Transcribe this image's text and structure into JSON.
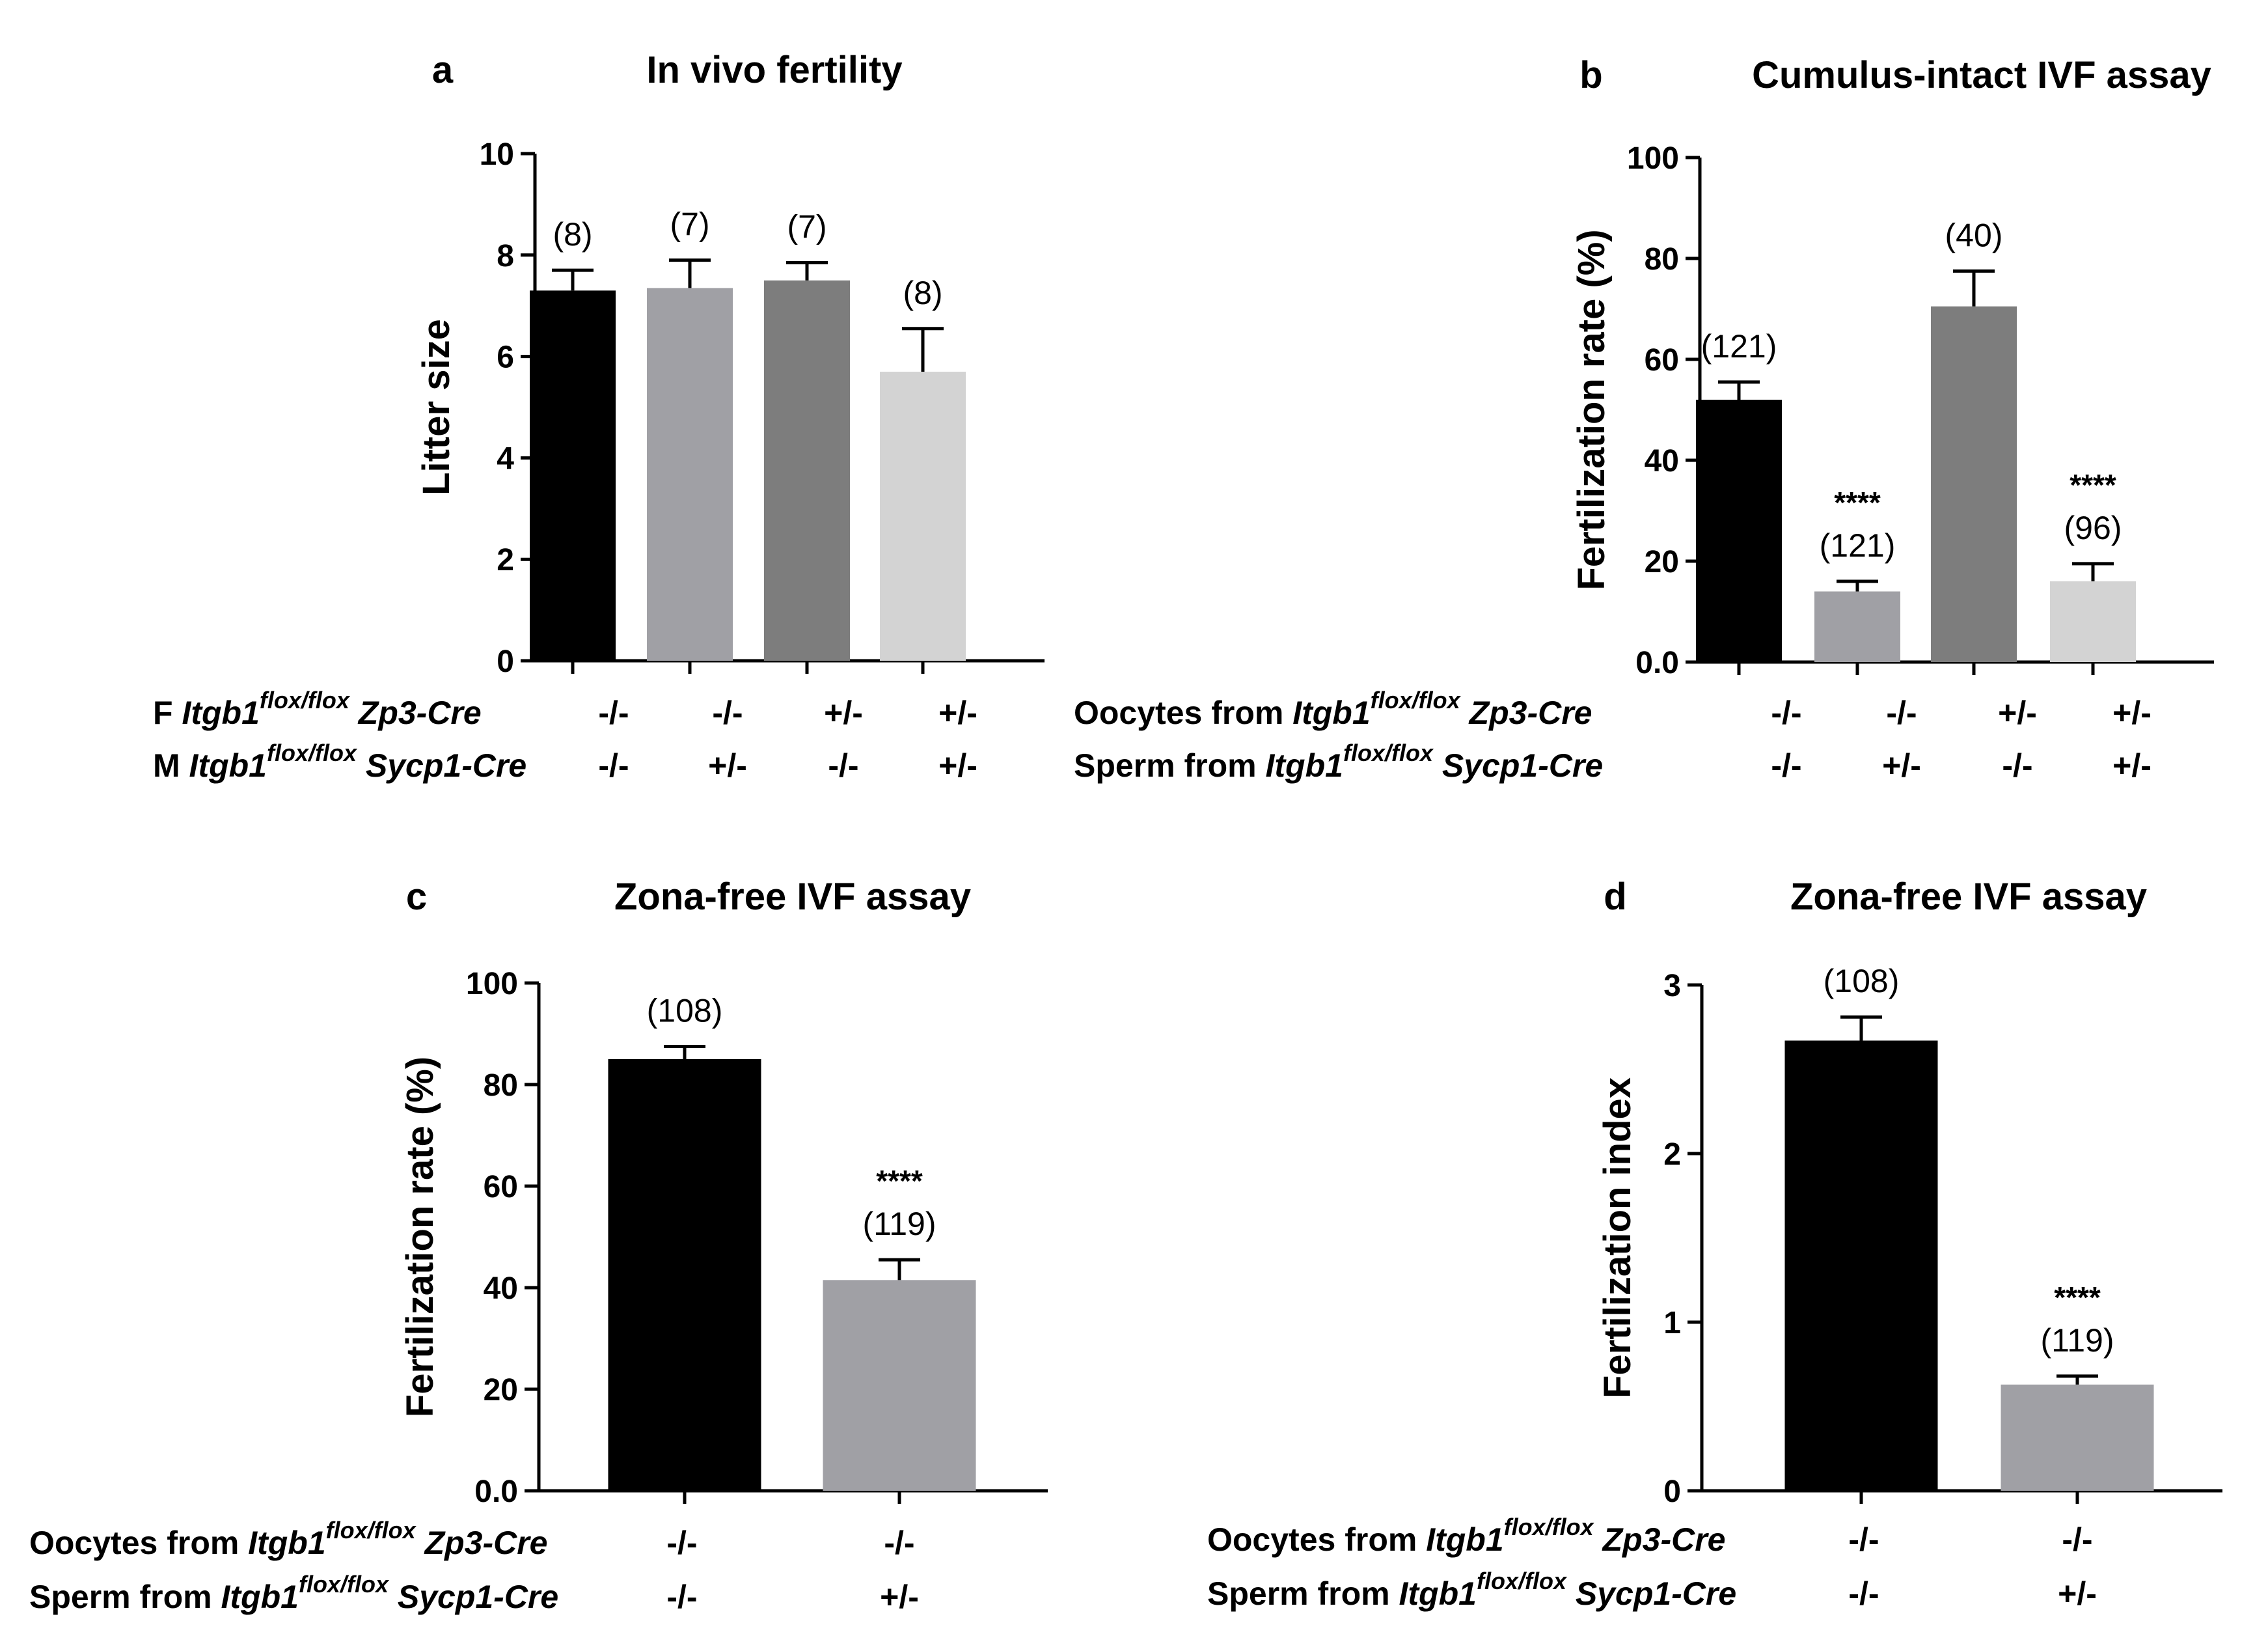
{
  "panels": [
    {
      "id": "a",
      "letter": "a",
      "title": "In vivo fertility",
      "ylabel": "Litter size",
      "ylim": [
        0,
        10
      ],
      "yticks": [
        "0",
        "2",
        "4",
        "6",
        "8",
        "10"
      ],
      "yticks_values": [
        0,
        2,
        4,
        6,
        8,
        10
      ],
      "rows": [
        {
          "prefix": "F ",
          "gene": "Itgb1",
          "sup": "flox/flox",
          "suffix": " Zp3-Cre",
          "values": [
            "-/-",
            "-/-",
            "+/-",
            "+/-"
          ]
        },
        {
          "prefix": "M ",
          "gene": "Itgb1",
          "sup": "flox/flox",
          "suffix": " Sycp1-Cre",
          "values": [
            "-/-",
            "+/-",
            "-/-",
            "+/-"
          ]
        }
      ]
    },
    {
      "id": "b",
      "letter": "b",
      "title": "Cumulus-intact IVF assay",
      "ylabel": "Fertilization rate (%)",
      "ylim": [
        0,
        100
      ],
      "yticks": [
        "0.0",
        "20",
        "40",
        "60",
        "80",
        "100"
      ],
      "yticks_values": [
        0,
        20,
        40,
        60,
        80,
        100
      ],
      "rows": [
        {
          "prefix": "Oocytes from ",
          "gene": "Itgb1",
          "sup": "flox/flox",
          "suffix": " Zp3-Cre",
          "values": [
            "-/-",
            "-/-",
            "+/-",
            "+/-"
          ]
        },
        {
          "prefix": "Sperm from ",
          "gene": "Itgb1",
          "sup": "flox/flox",
          "suffix": " Sycp1-Cre",
          "values": [
            "-/-",
            "+/-",
            "-/-",
            "+/-"
          ]
        }
      ]
    },
    {
      "id": "c",
      "letter": "c",
      "title": "Zona-free IVF assay",
      "ylabel": "Fertilization rate (%)",
      "ylim": [
        0,
        100
      ],
      "yticks": [
        "0.0",
        "20",
        "40",
        "60",
        "80",
        "100"
      ],
      "yticks_values": [
        0,
        20,
        40,
        60,
        80,
        100
      ],
      "rows": [
        {
          "prefix": "Oocytes from ",
          "gene": "Itgb1",
          "sup": "flox/flox",
          "suffix": " Zp3-Cre",
          "values": [
            "-/-",
            "-/-"
          ]
        },
        {
          "prefix": "Sperm from ",
          "gene": "Itgb1",
          "sup": "flox/flox",
          "suffix": " Sycp1-Cre",
          "values": [
            "-/-",
            "+/-"
          ]
        }
      ]
    },
    {
      "id": "d",
      "letter": "d",
      "title": "Zona-free IVF assay",
      "ylabel": "Fertilization index",
      "ylim": [
        0,
        3
      ],
      "yticks": [
        "0",
        "1",
        "2",
        "3"
      ],
      "yticks_values": [
        0,
        1,
        2,
        3
      ],
      "rows": [
        {
          "prefix": "Oocytes from ",
          "gene": "Itgb1",
          "sup": "flox/flox",
          "suffix": " Zp3-Cre",
          "values": [
            "-/-",
            "-/-"
          ]
        },
        {
          "prefix": "Sperm from ",
          "gene": "Itgb1",
          "sup": "flox/flox",
          "suffix": " Sycp1-Cre",
          "values": [
            "-/-",
            "+/-"
          ]
        }
      ]
    }
  ],
  "chart_data": [
    {
      "panel": "a",
      "type": "bar",
      "title": "In vivo fertility",
      "ylabel": "Litter size",
      "ylim": [
        0,
        10
      ],
      "values": [
        7.3,
        7.35,
        7.5,
        5.7
      ],
      "errors": [
        0.4,
        0.55,
        0.35,
        0.85
      ],
      "n_labels": [
        "(8)",
        "(7)",
        "(7)",
        "(8)"
      ],
      "significance": [
        "",
        "",
        "",
        ""
      ],
      "colors": [
        "#000000",
        "#a0a0a5",
        "#7d7d7d",
        "#d3d3d3"
      ]
    },
    {
      "panel": "b",
      "type": "bar",
      "title": "Cumulus-intact IVF assay",
      "ylabel": "Fertilization rate (%)",
      "ylim": [
        0,
        100
      ],
      "values": [
        52,
        14,
        70.5,
        16
      ],
      "errors": [
        3.5,
        2,
        7,
        3.5
      ],
      "n_labels": [
        "(121)",
        "(121)",
        "(40)",
        "(96)"
      ],
      "significance": [
        "",
        "****",
        "",
        "****"
      ],
      "colors": [
        "#000000",
        "#a0a0a5",
        "#7d7d7d",
        "#d3d3d3"
      ]
    },
    {
      "panel": "c",
      "type": "bar",
      "title": "Zona-free IVF assay",
      "ylabel": "Fertilization rate (%)",
      "ylim": [
        0,
        100
      ],
      "values": [
        85,
        41.5
      ],
      "errors": [
        2.5,
        4
      ],
      "n_labels": [
        "(108)",
        "(119)"
      ],
      "significance": [
        "",
        "****"
      ],
      "colors": [
        "#000000",
        "#a0a0a5"
      ]
    },
    {
      "panel": "d",
      "type": "bar",
      "title": "Zona-free IVF assay",
      "ylabel": "Fertilization index",
      "ylim": [
        0,
        3
      ],
      "values": [
        2.67,
        0.63
      ],
      "errors": [
        0.14,
        0.05
      ],
      "n_labels": [
        "(108)",
        "(119)"
      ],
      "significance": [
        "",
        "****"
      ],
      "colors": [
        "#000000",
        "#a0a0a5"
      ]
    }
  ]
}
